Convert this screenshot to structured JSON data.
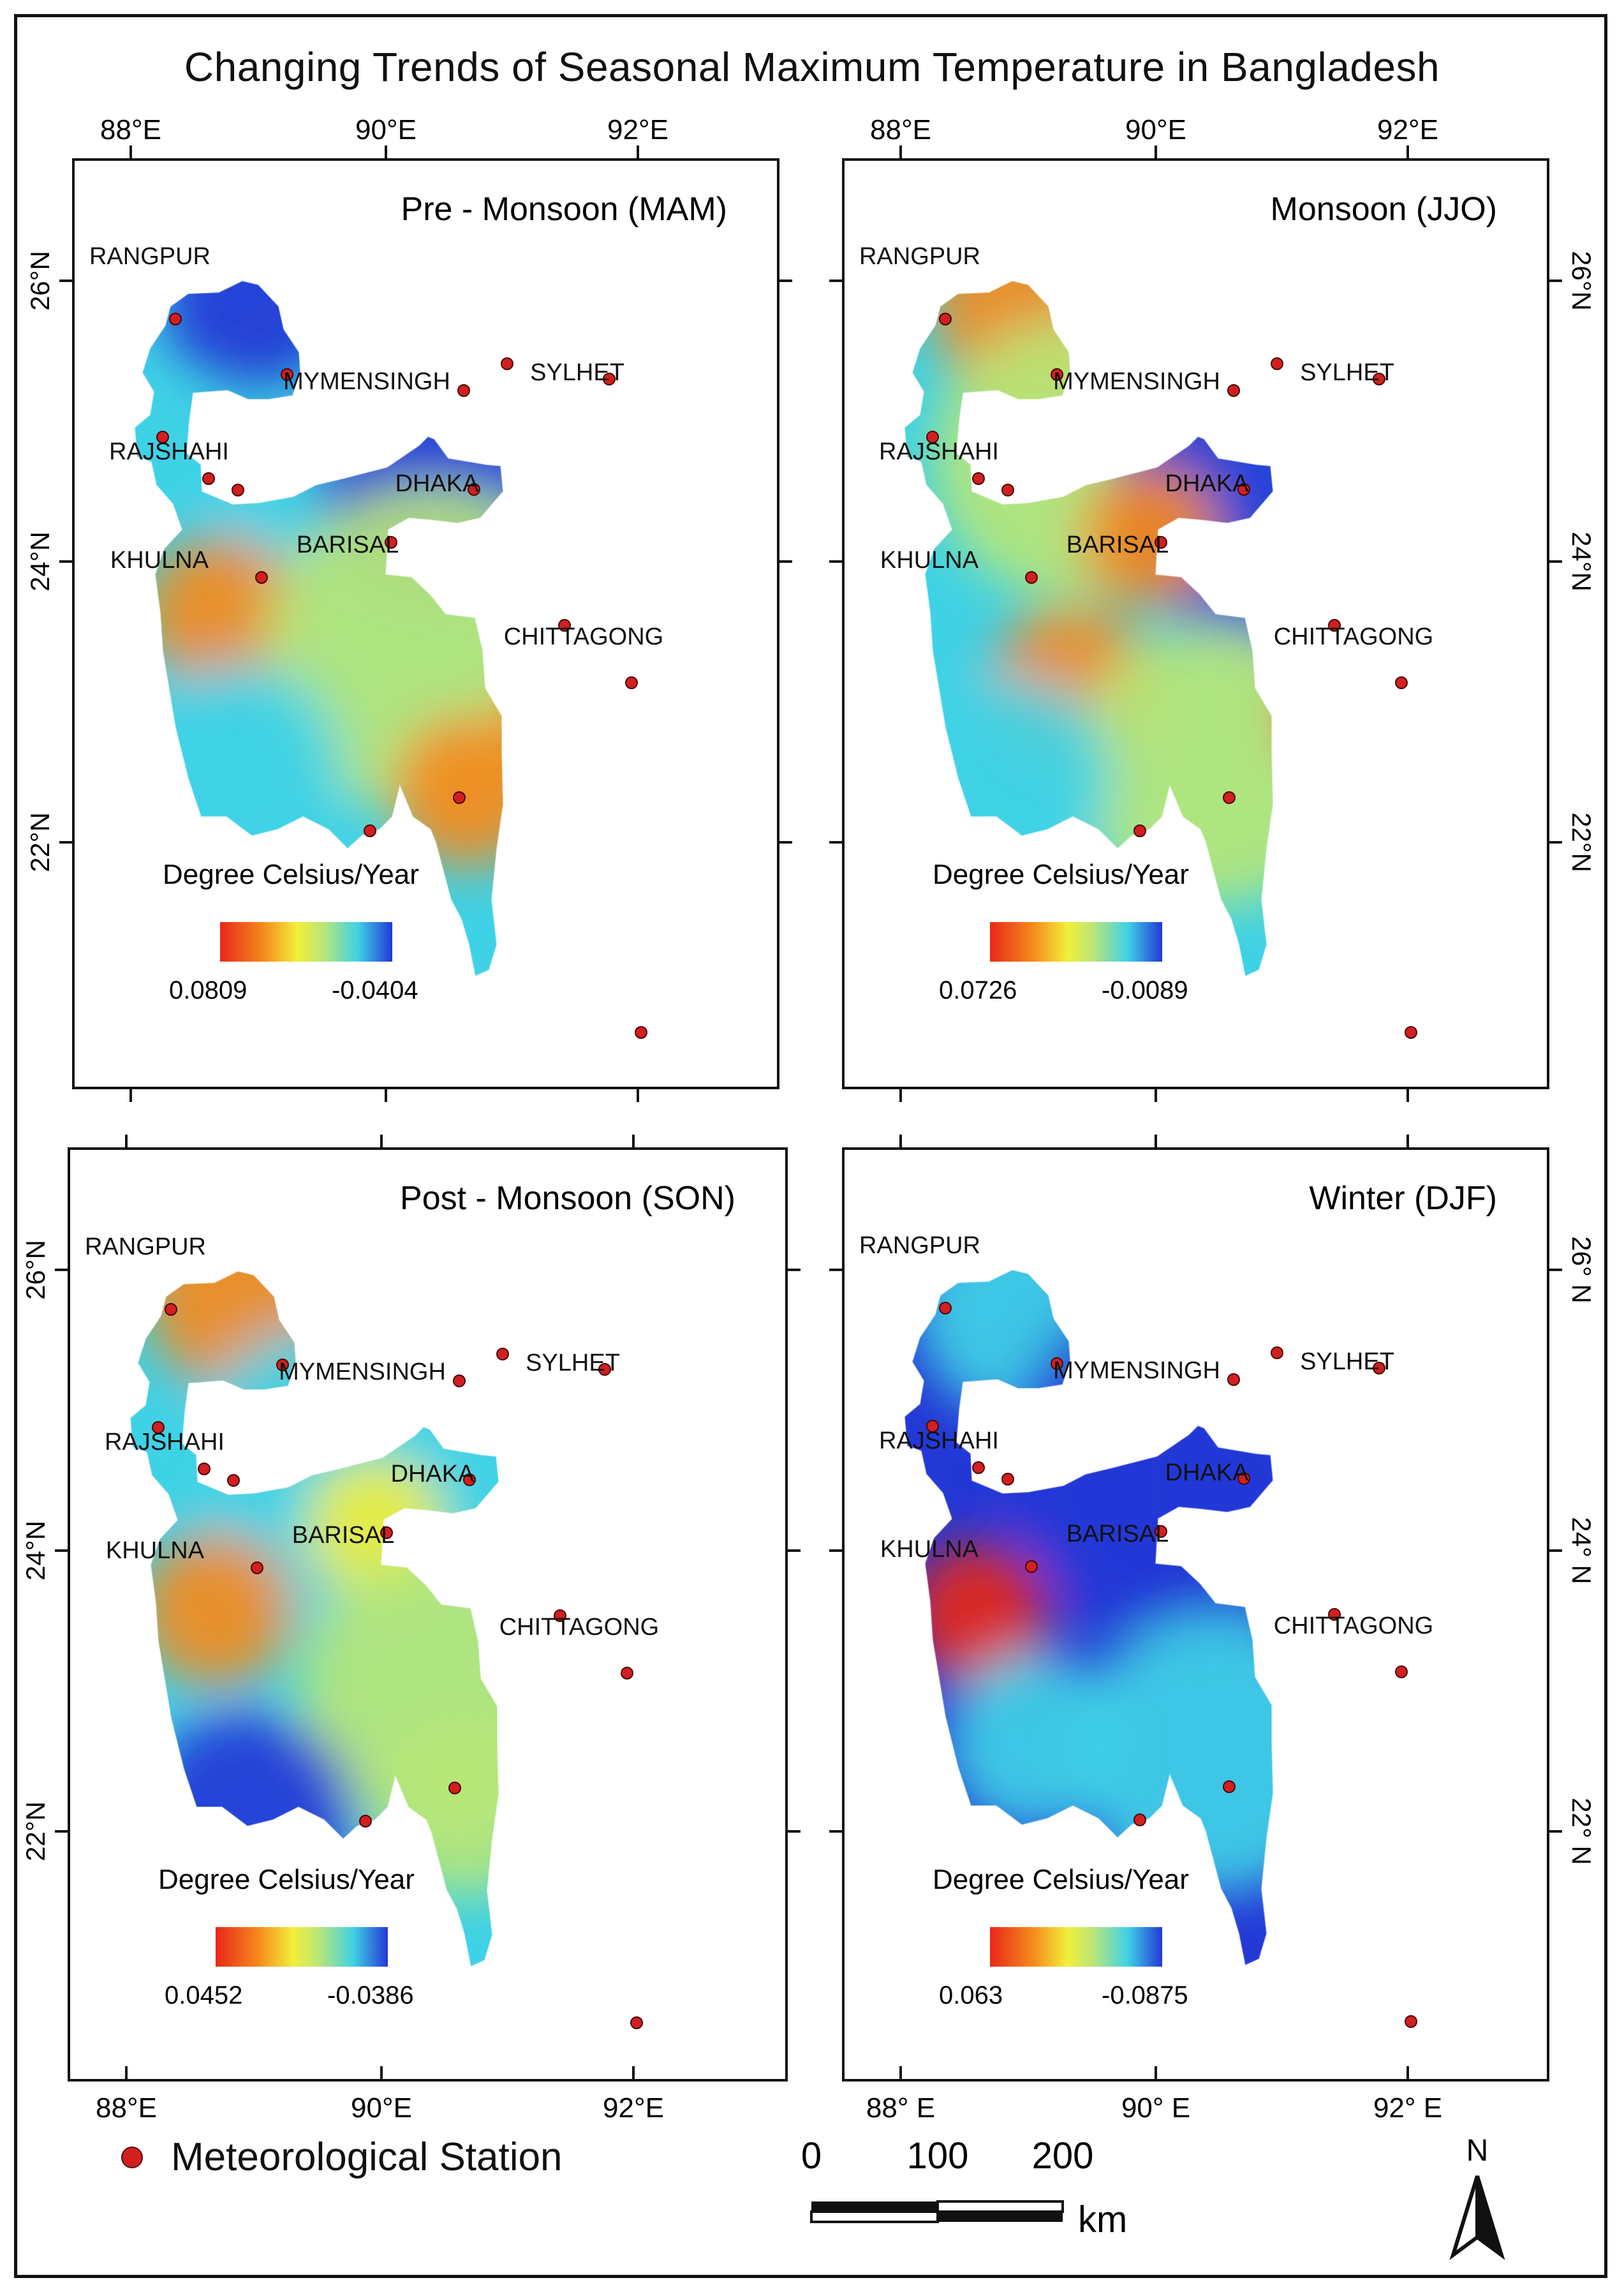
{
  "title": "Changing Trends of Seasonal Maximum Temperature in Bangladesh",
  "colors": {
    "warm": "#e8281a",
    "orange": "#f58a1c",
    "yellow": "#f2ef3a",
    "green": "#b9e677",
    "aqua": "#3fd2e6",
    "blue": "#2438d6",
    "station": "#d21f1f"
  },
  "legend_title": "Degree Celsius/Year",
  "panels": [
    {
      "title": "Pre - Monsoon (MAM)",
      "legend_max": "0.0809",
      "legend_min": "-0.0404",
      "top_ticks": [
        "88°E",
        "90°E",
        "92°E"
      ],
      "lat_ticks": [
        "26°N",
        "24°N",
        "22°N"
      ]
    },
    {
      "title": "Monsoon (JJO)",
      "legend_max": "0.0726",
      "legend_min": "-0.0089",
      "top_ticks": [
        "88°E",
        "90°E",
        "92°E"
      ],
      "lat_ticks": [
        "26°N",
        "24°N",
        "22°N"
      ]
    },
    {
      "title": "Post - Monsoon (SON)",
      "legend_max": "0.0452",
      "legend_min": "-0.0386",
      "bottom_ticks": [
        "88°E",
        "90°E",
        "92°E"
      ],
      "lat_ticks": [
        "26°N",
        "24°N",
        "22°N"
      ]
    },
    {
      "title": "Winter (DJF)",
      "legend_max": "0.063",
      "legend_min": "-0.0875",
      "bottom_ticks": [
        "88° E",
        "90° E",
        "92° E"
      ],
      "lat_ticks": [
        "26° N",
        "24° N",
        "22° N"
      ]
    }
  ],
  "cities": [
    "RANGPUR",
    "MYMENSINGH",
    "SYLHET",
    "RAJSHAHI",
    "DHAKA",
    "KHULNA",
    "BARISAL",
    "CHITTAGONG"
  ],
  "station_legend": "Meteorological Station",
  "scale_bar": {
    "labels": [
      "0",
      "100",
      "200"
    ],
    "unit": "km"
  },
  "north_label": "N"
}
